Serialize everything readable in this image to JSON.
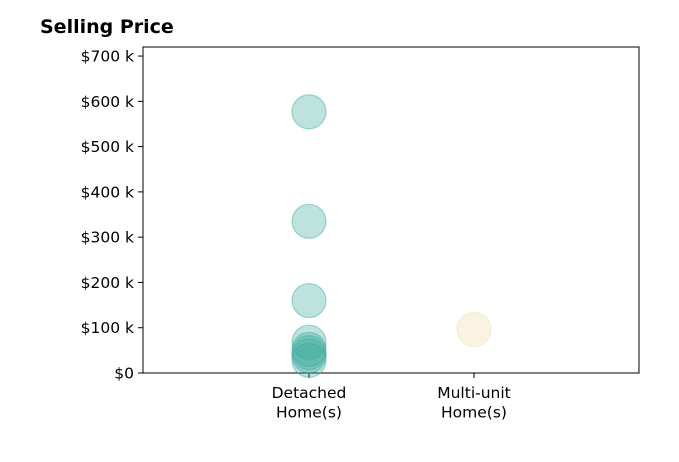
{
  "chart_data": {
    "type": "scatter",
    "title": "Selling Price",
    "xlabel": "",
    "ylabel": "",
    "categories": [
      "Detached\nHome(s)",
      "Multi-unit\nHome(s)"
    ],
    "ylim": [
      0,
      720000
    ],
    "yticks": [
      {
        "value": 0,
        "label": "$0"
      },
      {
        "value": 100000,
        "label": "$100 k"
      },
      {
        "value": 200000,
        "label": "$200 k"
      },
      {
        "value": 300000,
        "label": "$300 k"
      },
      {
        "value": 400000,
        "label": "$400 k"
      },
      {
        "value": 500000,
        "label": "$500 k"
      },
      {
        "value": 600000,
        "label": "$600 k"
      },
      {
        "value": 700000,
        "label": "$700 k"
      }
    ],
    "series": [
      {
        "category": "Detached\nHome(s)",
        "color": "#3ba99c",
        "values": [
          577000,
          335000,
          160000,
          68000,
          52000,
          45000,
          38000,
          28000
        ]
      },
      {
        "category": "Multi-unit\nHome(s)",
        "color": "#f0dca8",
        "values": [
          96000
        ]
      }
    ],
    "grid": false,
    "legend": "none"
  }
}
